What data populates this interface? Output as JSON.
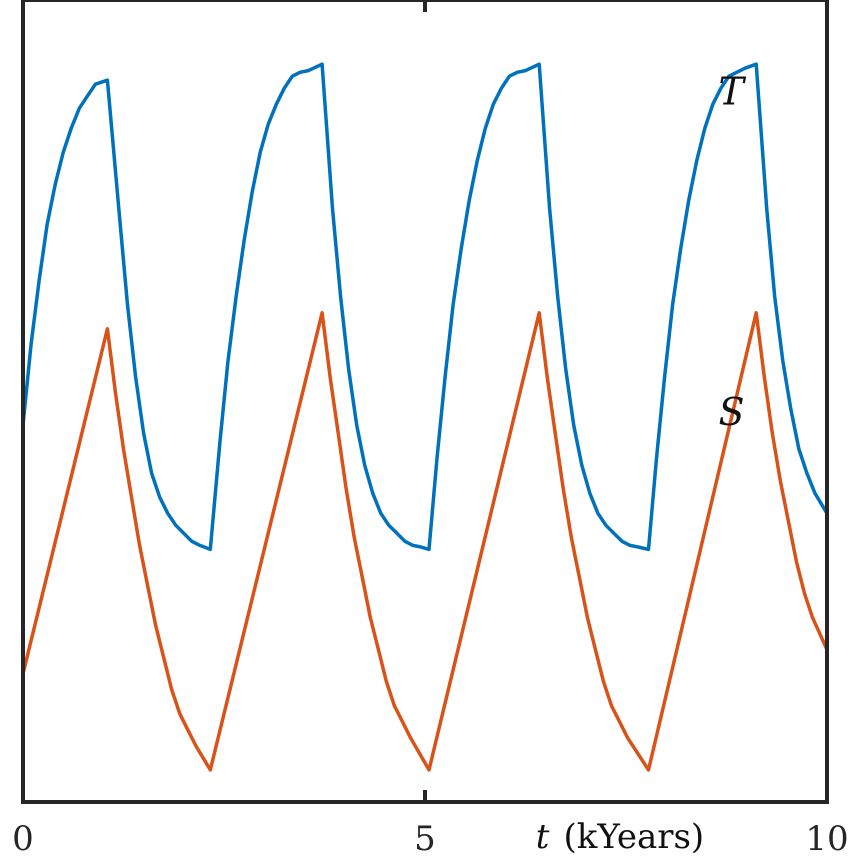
{
  "chart_data": {
    "type": "line",
    "xlabel": "(kYears)",
    "xlabel_variable": "t",
    "xlim": [
      0,
      10
    ],
    "ylim": [
      0,
      1
    ],
    "x_ticks": [
      0,
      5,
      10
    ],
    "x_tick_labels": [
      "0",
      "5",
      "10"
    ],
    "y_ticks_shown": false,
    "grid": false,
    "series": [
      {
        "name": "T",
        "color": "#0072BD",
        "points": [
          [
            0.0,
            0.47
          ],
          [
            0.1,
            0.57
          ],
          [
            0.2,
            0.65
          ],
          [
            0.3,
            0.72
          ],
          [
            0.4,
            0.77
          ],
          [
            0.5,
            0.81
          ],
          [
            0.6,
            0.84
          ],
          [
            0.7,
            0.865
          ],
          [
            0.8,
            0.88
          ],
          [
            0.9,
            0.895
          ],
          [
            1.05,
            0.9
          ],
          [
            1.2,
            0.73
          ],
          [
            1.3,
            0.62
          ],
          [
            1.4,
            0.53
          ],
          [
            1.5,
            0.46
          ],
          [
            1.6,
            0.41
          ],
          [
            1.7,
            0.38
          ],
          [
            1.8,
            0.36
          ],
          [
            1.9,
            0.345
          ],
          [
            2.0,
            0.335
          ],
          [
            2.1,
            0.325
          ],
          [
            2.2,
            0.32
          ],
          [
            2.33,
            0.315
          ],
          [
            2.45,
            0.45
          ],
          [
            2.55,
            0.55
          ],
          [
            2.65,
            0.63
          ],
          [
            2.75,
            0.7
          ],
          [
            2.85,
            0.76
          ],
          [
            2.95,
            0.81
          ],
          [
            3.05,
            0.845
          ],
          [
            3.15,
            0.87
          ],
          [
            3.25,
            0.89
          ],
          [
            3.35,
            0.905
          ],
          [
            3.45,
            0.91
          ],
          [
            3.55,
            0.912
          ],
          [
            3.72,
            0.92
          ],
          [
            3.85,
            0.74
          ],
          [
            3.95,
            0.63
          ],
          [
            4.05,
            0.54
          ],
          [
            4.15,
            0.47
          ],
          [
            4.25,
            0.42
          ],
          [
            4.35,
            0.385
          ],
          [
            4.45,
            0.36
          ],
          [
            4.55,
            0.345
          ],
          [
            4.65,
            0.335
          ],
          [
            4.75,
            0.325
          ],
          [
            4.85,
            0.32
          ],
          [
            4.95,
            0.318
          ],
          [
            5.05,
            0.315
          ],
          [
            5.15,
            0.43
          ],
          [
            5.25,
            0.53
          ],
          [
            5.35,
            0.62
          ],
          [
            5.45,
            0.69
          ],
          [
            5.55,
            0.75
          ],
          [
            5.65,
            0.8
          ],
          [
            5.75,
            0.84
          ],
          [
            5.85,
            0.87
          ],
          [
            5.95,
            0.89
          ],
          [
            6.05,
            0.905
          ],
          [
            6.15,
            0.91
          ],
          [
            6.25,
            0.912
          ],
          [
            6.42,
            0.92
          ],
          [
            6.55,
            0.74
          ],
          [
            6.65,
            0.63
          ],
          [
            6.75,
            0.54
          ],
          [
            6.85,
            0.47
          ],
          [
            6.95,
            0.42
          ],
          [
            7.05,
            0.385
          ],
          [
            7.15,
            0.36
          ],
          [
            7.25,
            0.345
          ],
          [
            7.35,
            0.335
          ],
          [
            7.45,
            0.325
          ],
          [
            7.55,
            0.32
          ],
          [
            7.65,
            0.318
          ],
          [
            7.78,
            0.315
          ],
          [
            7.88,
            0.43
          ],
          [
            7.98,
            0.53
          ],
          [
            8.08,
            0.62
          ],
          [
            8.18,
            0.69
          ],
          [
            8.28,
            0.75
          ],
          [
            8.38,
            0.8
          ],
          [
            8.48,
            0.84
          ],
          [
            8.58,
            0.87
          ],
          [
            8.68,
            0.89
          ],
          [
            8.78,
            0.905
          ],
          [
            8.88,
            0.91
          ],
          [
            8.98,
            0.915
          ],
          [
            9.12,
            0.92
          ],
          [
            9.25,
            0.74
          ],
          [
            9.35,
            0.63
          ],
          [
            9.45,
            0.55
          ],
          [
            9.55,
            0.49
          ],
          [
            9.65,
            0.44
          ],
          [
            9.75,
            0.41
          ],
          [
            9.85,
            0.385
          ],
          [
            10.0,
            0.36
          ]
        ]
      },
      {
        "name": "S",
        "color": "#D95319",
        "points": [
          [
            0.0,
            0.16
          ],
          [
            1.05,
            0.59
          ],
          [
            1.15,
            0.51
          ],
          [
            1.25,
            0.44
          ],
          [
            1.35,
            0.38
          ],
          [
            1.45,
            0.32
          ],
          [
            1.55,
            0.27
          ],
          [
            1.65,
            0.22
          ],
          [
            1.75,
            0.18
          ],
          [
            1.85,
            0.14
          ],
          [
            1.95,
            0.11
          ],
          [
            2.05,
            0.09
          ],
          [
            2.15,
            0.07
          ],
          [
            2.33,
            0.04
          ],
          [
            3.72,
            0.61
          ],
          [
            3.82,
            0.53
          ],
          [
            3.92,
            0.46
          ],
          [
            4.02,
            0.39
          ],
          [
            4.12,
            0.33
          ],
          [
            4.22,
            0.28
          ],
          [
            4.32,
            0.23
          ],
          [
            4.42,
            0.19
          ],
          [
            4.52,
            0.15
          ],
          [
            4.62,
            0.12
          ],
          [
            4.72,
            0.1
          ],
          [
            4.82,
            0.08
          ],
          [
            5.05,
            0.04
          ],
          [
            6.42,
            0.61
          ],
          [
            6.52,
            0.53
          ],
          [
            6.62,
            0.46
          ],
          [
            6.72,
            0.39
          ],
          [
            6.82,
            0.33
          ],
          [
            6.92,
            0.28
          ],
          [
            7.02,
            0.23
          ],
          [
            7.12,
            0.19
          ],
          [
            7.22,
            0.15
          ],
          [
            7.32,
            0.12
          ],
          [
            7.42,
            0.1
          ],
          [
            7.52,
            0.08
          ],
          [
            7.78,
            0.04
          ],
          [
            9.12,
            0.61
          ],
          [
            9.22,
            0.53
          ],
          [
            9.32,
            0.46
          ],
          [
            9.42,
            0.4
          ],
          [
            9.52,
            0.35
          ],
          [
            9.62,
            0.3
          ],
          [
            9.72,
            0.26
          ],
          [
            9.82,
            0.23
          ],
          [
            10.0,
            0.19
          ]
        ]
      }
    ],
    "series_labels": [
      {
        "text": "T",
        "x": 8.65,
        "y": 0.87
      },
      {
        "text": "S",
        "x": 8.65,
        "y": 0.47
      }
    ]
  }
}
